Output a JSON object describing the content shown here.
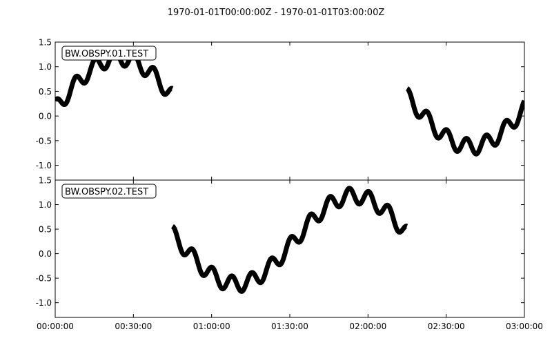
{
  "chart_data": {
    "type": "line",
    "title": "1970-01-01T00:00:00Z  -  1970-01-01T03:00:00Z",
    "x_unit": "HH:MM:SS",
    "xlim": [
      "00:00:00",
      "03:00:00"
    ],
    "x_ticks": [
      "00:00:00",
      "00:30:00",
      "01:00:00",
      "01:30:00",
      "02:00:00",
      "02:30:00",
      "03:00:00"
    ],
    "grid": false,
    "panels": [
      {
        "label": "BW.OBSPY.01.TEST",
        "ylim": [
          -1.3,
          1.5
        ],
        "y_ticks": [
          "1.5",
          "1.0",
          "0.5",
          "0.0",
          "-0.5",
          "-1.0"
        ],
        "y_tick_values": [
          1.5,
          1.0,
          0.5,
          0.0,
          -0.5,
          -1.0
        ],
        "segments": [
          {
            "start": "00:00:00",
            "end": "00:45:00"
          },
          {
            "start": "02:15:00",
            "end": "03:00:00"
          }
        ]
      },
      {
        "label": "BW.OBSPY.02.TEST",
        "ylim": [
          -1.3,
          1.5
        ],
        "y_ticks": [
          "1.5",
          "1.0",
          "0.5",
          "0.0",
          "-0.5",
          "-1.0"
        ],
        "y_tick_values": [
          1.5,
          1.0,
          0.5,
          0.0,
          -0.5,
          -1.0
        ],
        "segments": [
          {
            "start": "00:45:00",
            "end": "02:15:00"
          }
        ]
      }
    ],
    "series_color": "#000000"
  }
}
